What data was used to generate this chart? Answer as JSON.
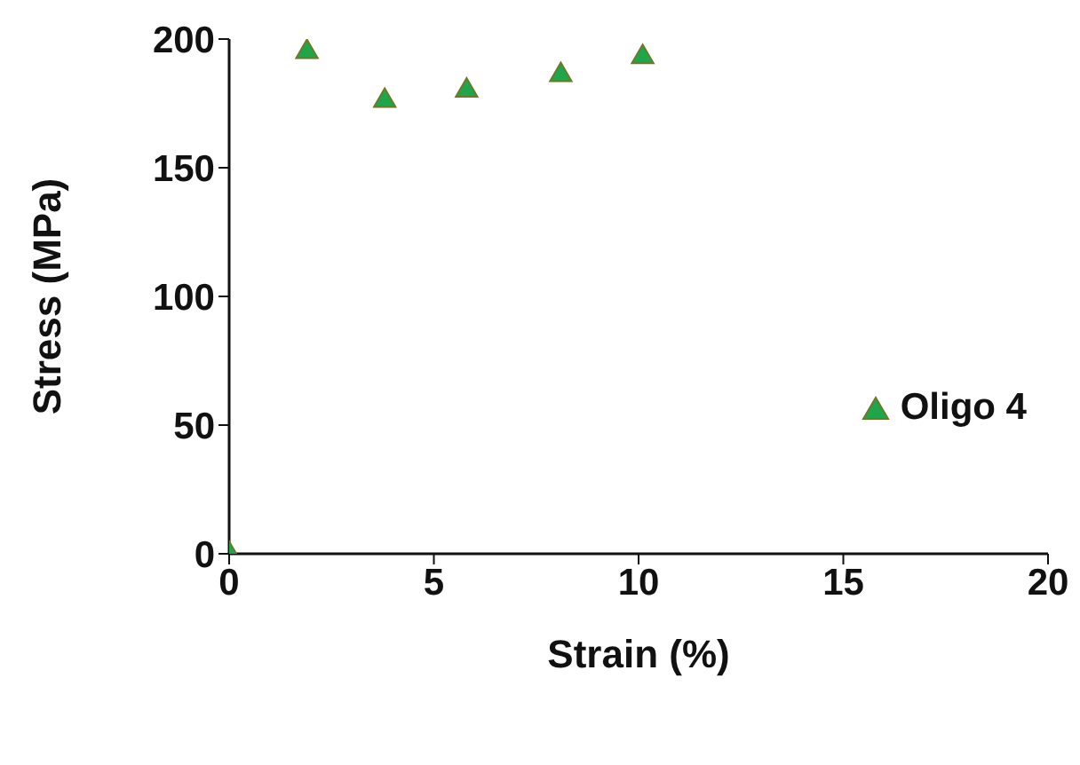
{
  "chart_data": {
    "type": "scatter",
    "xlabel": "Strain (%)",
    "ylabel": "Stress (MPa)",
    "x": [
      0,
      1.9,
      3.8,
      5.8,
      8.1,
      10.1
    ],
    "series": [
      {
        "name": "Oligo 4",
        "color": "#1fa64a",
        "values": [
          0,
          195,
          176,
          180,
          186,
          193
        ]
      }
    ],
    "xlim": [
      0,
      20
    ],
    "xticks": [
      0,
      5,
      10,
      15,
      20
    ],
    "ylim": [
      0,
      200
    ],
    "yticks": [
      0,
      50,
      100,
      150,
      200
    ],
    "grid": false,
    "legend": "right",
    "marker": "triangle"
  }
}
